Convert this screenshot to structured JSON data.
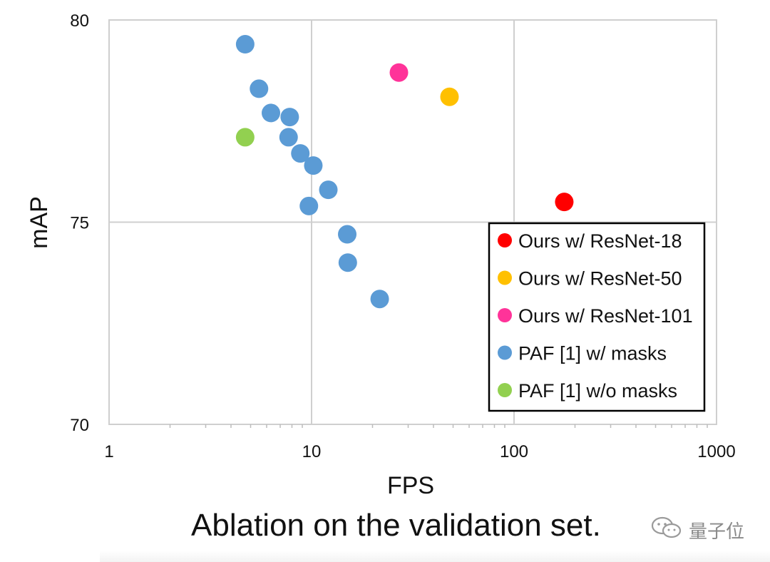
{
  "chart_data": {
    "type": "scatter",
    "title": "",
    "xlabel": "FPS",
    "ylabel": "mAP",
    "xscale": "log",
    "xlim": [
      1,
      1000
    ],
    "ylim": [
      70,
      80
    ],
    "xticks": [
      "1",
      "10",
      "100",
      "1000"
    ],
    "yticks": [
      "70",
      "75",
      "80"
    ],
    "grid": true,
    "legend_position": "bottom-right",
    "series": [
      {
        "name": "Ours w/ ResNet-18",
        "color": "#ff0000",
        "points": [
          [
            177,
            75.5
          ]
        ]
      },
      {
        "name": "Ours w/ ResNet-50",
        "color": "#ffc000",
        "points": [
          [
            48,
            78.1
          ]
        ]
      },
      {
        "name": "Ours w/ ResNet-101",
        "color": "#ff3399",
        "points": [
          [
            27,
            78.7
          ]
        ]
      },
      {
        "name": "PAF [1] w/ masks",
        "color": "#5b9bd5",
        "points": [
          [
            4.7,
            79.4
          ],
          [
            5.5,
            78.3
          ],
          [
            6.3,
            77.7
          ],
          [
            7.8,
            77.6
          ],
          [
            7.7,
            77.1
          ],
          [
            8.8,
            76.7
          ],
          [
            10.2,
            76.4
          ],
          [
            12.1,
            75.8
          ],
          [
            9.7,
            75.4
          ],
          [
            15.0,
            74.7
          ],
          [
            15.1,
            74.0
          ],
          [
            21.7,
            73.1
          ]
        ]
      },
      {
        "name": "PAF [1] w/o masks",
        "color": "#92d050",
        "points": [
          [
            4.7,
            77.1
          ]
        ]
      }
    ]
  },
  "caption": "Ablation on the validation set.",
  "watermark": {
    "text": "量子位",
    "icon": "wechat-icon"
  }
}
